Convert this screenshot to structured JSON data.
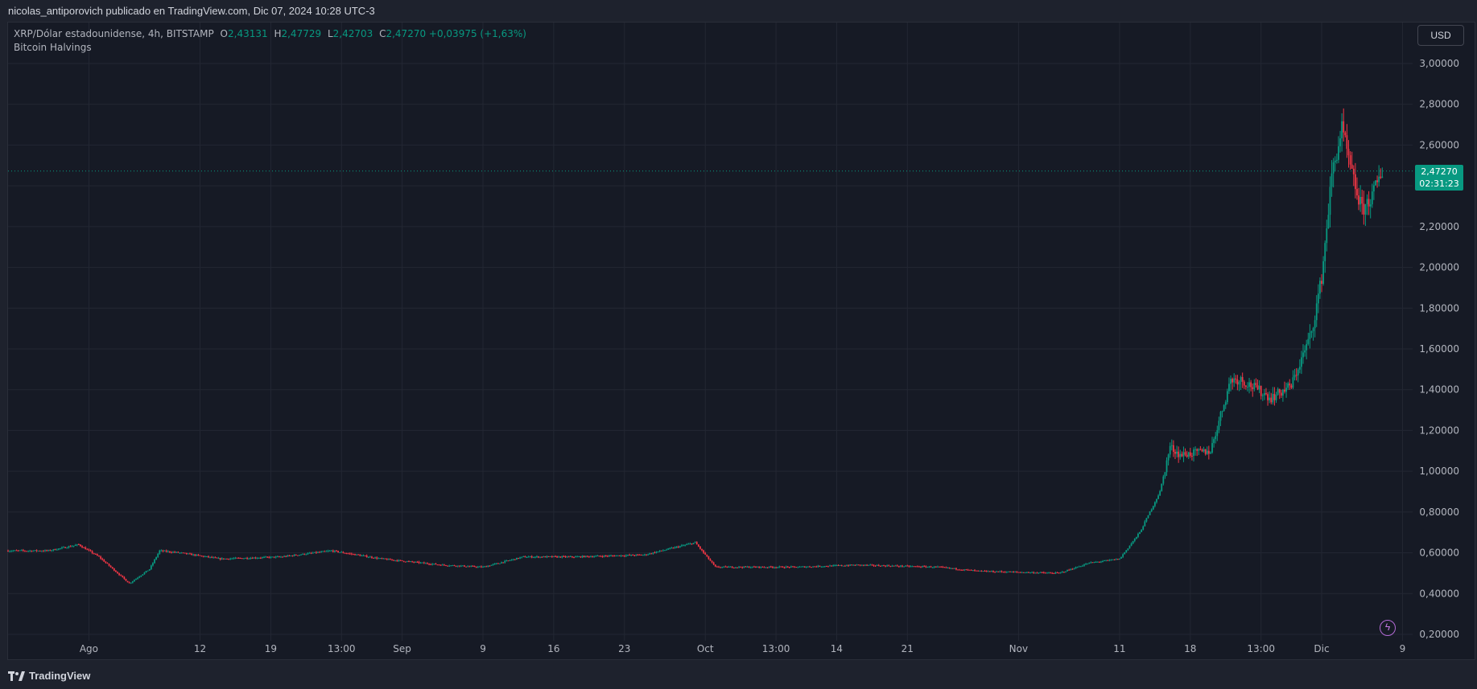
{
  "header": {
    "publisher_text": "nicolas_antiporovich publicado en TradingView.com, Dic 07, 2024 10:28 UTC-3"
  },
  "legend": {
    "symbol": "XRP/Dólar estadounidense, 4h, BITSTAMP",
    "o_label": "O",
    "o_value": "2,43131",
    "h_label": "H",
    "h_value": "2,47729",
    "l_label": "L",
    "l_value": "2,42703",
    "c_label": "C",
    "c_value": "2,47270",
    "change": "+0,03975 (+1,63%)",
    "indicator": "Bitcoin Halvings"
  },
  "currency_button": "USD",
  "last_price": {
    "value": "2,47270",
    "countdown": "02:31:23",
    "price": 2.4727
  },
  "footer": {
    "brand": "TradingView"
  },
  "colors": {
    "up": "#089981",
    "down": "#f23645",
    "background": "#161a25",
    "grid": "#232733",
    "text": "#b2b5be"
  },
  "chart_data": {
    "type": "candlestick",
    "symbol": "XRP/USD",
    "interval": "4h",
    "ylim": [
      0.2,
      3.0
    ],
    "y_ticks": [
      "3,00000",
      "2,80000",
      "2,60000",
      "2,40000",
      "2,20000",
      "2,00000",
      "1,80000",
      "1,60000",
      "1,40000",
      "1,20000",
      "1,00000",
      "0,80000",
      "0,60000",
      "0,40000",
      "0,20000"
    ],
    "x_ticks": [
      {
        "label": "Ago",
        "date": "2024-08-01"
      },
      {
        "label": "12",
        "date": "2024-08-12"
      },
      {
        "label": "19",
        "date": "2024-08-19"
      },
      {
        "label": "13:00",
        "date": "2024-08-26"
      },
      {
        "label": "Sep",
        "date": "2024-09-01"
      },
      {
        "label": "9",
        "date": "2024-09-09"
      },
      {
        "label": "16",
        "date": "2024-09-16"
      },
      {
        "label": "23",
        "date": "2024-09-23"
      },
      {
        "label": "Oct",
        "date": "2024-10-01"
      },
      {
        "label": "13:00",
        "date": "2024-10-08"
      },
      {
        "label": "14",
        "date": "2024-10-14"
      },
      {
        "label": "21",
        "date": "2024-10-21"
      },
      {
        "label": "Nov",
        "date": "2024-11-01"
      },
      {
        "label": "11",
        "date": "2024-11-11"
      },
      {
        "label": "18",
        "date": "2024-11-18"
      },
      {
        "label": "13:00",
        "date": "2024-11-25"
      },
      {
        "label": "Dic",
        "date": "2024-12-01"
      },
      {
        "label": "9",
        "date": "2024-12-09"
      }
    ],
    "x_range": [
      "2024-07-24",
      "2024-12-10"
    ],
    "price_path": [
      {
        "date": "2024-07-24",
        "close": 0.61
      },
      {
        "date": "2024-07-28",
        "close": 0.61
      },
      {
        "date": "2024-07-31",
        "close": 0.64
      },
      {
        "date": "2024-08-02",
        "close": 0.58
      },
      {
        "date": "2024-08-05",
        "close": 0.45
      },
      {
        "date": "2024-08-07",
        "close": 0.52
      },
      {
        "date": "2024-08-08",
        "close": 0.61
      },
      {
        "date": "2024-08-10",
        "close": 0.6
      },
      {
        "date": "2024-08-14",
        "close": 0.57
      },
      {
        "date": "2024-08-20",
        "close": 0.58
      },
      {
        "date": "2024-08-25",
        "close": 0.61
      },
      {
        "date": "2024-08-30",
        "close": 0.57
      },
      {
        "date": "2024-09-05",
        "close": 0.54
      },
      {
        "date": "2024-09-09",
        "close": 0.53
      },
      {
        "date": "2024-09-13",
        "close": 0.58
      },
      {
        "date": "2024-09-18",
        "close": 0.58
      },
      {
        "date": "2024-09-25",
        "close": 0.59
      },
      {
        "date": "2024-09-30",
        "close": 0.65
      },
      {
        "date": "2024-10-02",
        "close": 0.53
      },
      {
        "date": "2024-10-10",
        "close": 0.53
      },
      {
        "date": "2024-10-16",
        "close": 0.54
      },
      {
        "date": "2024-10-24",
        "close": 0.53
      },
      {
        "date": "2024-10-28",
        "close": 0.51
      },
      {
        "date": "2024-11-05",
        "close": 0.5
      },
      {
        "date": "2024-11-08",
        "close": 0.55
      },
      {
        "date": "2024-11-11",
        "close": 0.57
      },
      {
        "date": "2024-11-13",
        "close": 0.7
      },
      {
        "date": "2024-11-15",
        "close": 0.9
      },
      {
        "date": "2024-11-16",
        "close": 1.12
      },
      {
        "date": "2024-11-17",
        "close": 1.08
      },
      {
        "date": "2024-11-20",
        "close": 1.1
      },
      {
        "date": "2024-11-22",
        "close": 1.45
      },
      {
        "date": "2024-11-23",
        "close": 1.45
      },
      {
        "date": "2024-11-26",
        "close": 1.36
      },
      {
        "date": "2024-11-28",
        "close": 1.42
      },
      {
        "date": "2024-11-30",
        "close": 1.68
      },
      {
        "date": "2024-12-01",
        "close": 1.95
      },
      {
        "date": "2024-12-02",
        "close": 2.45
      },
      {
        "date": "2024-12-03",
        "close": 2.68
      },
      {
        "date": "2024-12-04",
        "close": 2.45
      },
      {
        "date": "2024-12-05",
        "close": 2.28
      },
      {
        "date": "2024-12-06",
        "close": 2.35
      },
      {
        "date": "2024-12-07",
        "close": 2.4727
      }
    ],
    "last_price_line": 2.4727
  }
}
